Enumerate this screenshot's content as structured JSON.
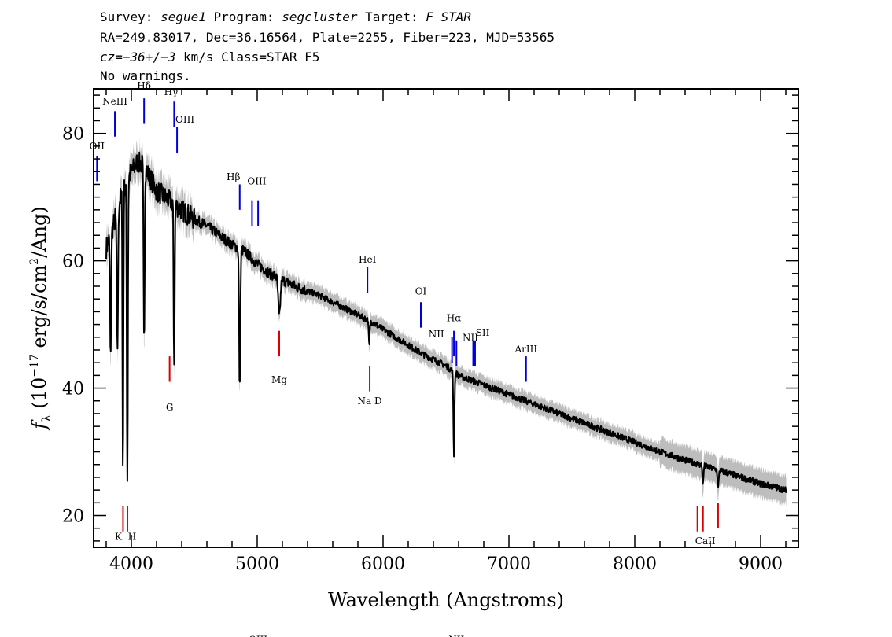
{
  "header": {
    "line1": {
      "survey_label": "Survey: ",
      "survey": "segue1",
      "program_label": " Program: ",
      "program": "segcluster",
      "target_label": " Target: ",
      "target": "F_STAR"
    },
    "line2": "RA=249.83017, Dec=36.16564, Plate=2255, Fiber=223, MJD=53565",
    "line3": {
      "cz": "cz=",
      "velocity": "−36+/−3",
      "rest": " km/s Class=STAR F5"
    },
    "line4": "No warnings."
  },
  "chart_data": {
    "type": "line",
    "xlabel": "Wavelength (Angstroms)",
    "ylabel": "f_λ (10^-17 erg/s/cm^2/Ang)",
    "ylabel_parts": {
      "f": "f",
      "sub": "λ",
      "pre": " (10",
      "exp1": "−17",
      "mid": " erg/s/cm",
      "exp2": "2",
      "post": "/Ang)"
    },
    "xlim": [
      3700,
      9300
    ],
    "ylim": [
      15,
      87
    ],
    "xticks": [
      4000,
      5000,
      6000,
      7000,
      8000,
      9000
    ],
    "xtick_labels": [
      "4000",
      "5000",
      "6000",
      "7000",
      "8000",
      "9000"
    ],
    "yticks": [
      20,
      40,
      60,
      80
    ],
    "ytick_labels": [
      "20",
      "40",
      "60",
      "80"
    ],
    "grid": false,
    "colors": {
      "flux": "#000000",
      "error_band": "#bdbdbd",
      "emission": "#0000dd",
      "absorption": "#dd0000"
    },
    "flux_anchors": [
      [
        3800,
        62
      ],
      [
        3850,
        65
      ],
      [
        3900,
        69
      ],
      [
        3950,
        72
      ],
      [
        4000,
        74
      ],
      [
        4050,
        75.5
      ],
      [
        4100,
        75
      ],
      [
        4150,
        73
      ],
      [
        4200,
        71
      ],
      [
        4300,
        69.5
      ],
      [
        4400,
        68
      ],
      [
        4500,
        66.5
      ],
      [
        4600,
        65.5
      ],
      [
        4700,
        64
      ],
      [
        4800,
        62.5
      ],
      [
        4900,
        61.5
      ],
      [
        5000,
        59.5
      ],
      [
        5100,
        58
      ],
      [
        5200,
        57
      ],
      [
        5300,
        56
      ],
      [
        5500,
        54.5
      ],
      [
        5700,
        52.5
      ],
      [
        5900,
        50.5
      ],
      [
        6100,
        48
      ],
      [
        6300,
        45.5
      ],
      [
        6500,
        43.5
      ],
      [
        6600,
        42
      ],
      [
        6800,
        40.5
      ],
      [
        7000,
        39
      ],
      [
        7200,
        37.5
      ],
      [
        7400,
        36
      ],
      [
        7600,
        34.5
      ],
      [
        7800,
        33
      ],
      [
        8000,
        31.5
      ],
      [
        8200,
        30
      ],
      [
        8400,
        28.7
      ],
      [
        8600,
        27.5
      ],
      [
        8800,
        26.3
      ],
      [
        9000,
        25
      ],
      [
        9200,
        24
      ]
    ],
    "absorption_features": [
      {
        "x": 3835,
        "depth": 20,
        "width": 6
      },
      {
        "x": 3889,
        "depth": 22,
        "width": 7
      },
      {
        "x": 3933,
        "depth": 45,
        "width": 5
      },
      {
        "x": 3968,
        "depth": 47,
        "width": 6
      },
      {
        "x": 4101,
        "depth": 28,
        "width": 6
      },
      {
        "x": 4340,
        "depth": 25,
        "width": 6
      },
      {
        "x": 4861,
        "depth": 22,
        "width": 7
      },
      {
        "x": 5175,
        "depth": 6,
        "width": 12
      },
      {
        "x": 5890,
        "depth": 4,
        "width": 6
      },
      {
        "x": 6563,
        "depth": 13,
        "width": 6
      },
      {
        "x": 8542,
        "depth": 3,
        "width": 6
      },
      {
        "x": 8662,
        "depth": 3,
        "width": 6
      }
    ],
    "emission_lines": [
      {
        "label": "OII",
        "x": 3727,
        "y1": 72.5,
        "y2": 76.5,
        "label_y": 77.5,
        "label_dx": 0
      },
      {
        "label": "NeIII",
        "x": 3869,
        "y1": 79.5,
        "y2": 83.5,
        "label_y": 84.5,
        "label_dx": 0
      },
      {
        "label": "Hδ",
        "x": 4101,
        "y1": 81.5,
        "y2": 85.5,
        "label_y": 87.0,
        "label_dx": 0
      },
      {
        "label": "Hγ",
        "x": 4340,
        "y1": 81.0,
        "y2": 85.0,
        "label_y": 86.0,
        "label_dx": -4
      },
      {
        "label": "OIII",
        "x": 4363,
        "y1": 77.0,
        "y2": 81.0,
        "label_y": 81.7,
        "label_dx": 10
      },
      {
        "label": "Hβ",
        "x": 4861,
        "y1": 68.0,
        "y2": 72.0,
        "label_y": 72.7,
        "label_dx": -8
      },
      {
        "label": "OIII",
        "x": 4959,
        "y1": 65.5,
        "y2": 69.5,
        "label_y": 72.0,
        "label_dx": 6
      },
      {
        "label": "OIII",
        "x": 5007,
        "y1": 65.5,
        "y2": 69.5,
        "label_y": 0,
        "label_dx": 0
      },
      {
        "label": "HeI",
        "x": 5876,
        "y1": 55.0,
        "y2": 59.0,
        "label_y": 59.7,
        "label_dx": 0
      },
      {
        "label": "OI",
        "x": 6300,
        "y1": 49.5,
        "y2": 53.5,
        "label_y": 54.7,
        "label_dx": 0
      },
      {
        "label": "NII",
        "x": 6548,
        "y1": 44.0,
        "y2": 48.0,
        "label_y": 48.0,
        "label_dx": -20
      },
      {
        "label": "Hα",
        "x": 6563,
        "y1": 45.0,
        "y2": 49.0,
        "label_y": 50.5,
        "label_dx": 0
      },
      {
        "label": "NII",
        "x": 6583,
        "y1": 43.5,
        "y2": 47.5,
        "label_y": 0,
        "label_dx": 0
      },
      {
        "label": "SII",
        "x": 6716,
        "y1": 43.5,
        "y2": 47.5,
        "label_y": 48.2,
        "label_dx": 12
      },
      {
        "label": "NII",
        "x": 6731,
        "y1": 43.5,
        "y2": 47.5,
        "label_y": 47.4,
        "label_dx": -6
      },
      {
        "label": "ArIII",
        "x": 7136,
        "y1": 41.0,
        "y2": 45.0,
        "label_y": 45.6,
        "label_dx": 0
      }
    ],
    "absorption_lines": [
      {
        "label": "K",
        "x": 3934,
        "y1": 17.5,
        "y2": 21.5,
        "label_y": 16.2,
        "label_dx": -6
      },
      {
        "label": "H",
        "x": 3969,
        "y1": 17.5,
        "y2": 21.5,
        "label_y": 16.2,
        "label_dx": 6
      },
      {
        "label": "G",
        "x": 4304,
        "y1": 41.0,
        "y2": 45.0,
        "label_y": 36.5,
        "label_dx": 0
      },
      {
        "label": "Mg",
        "x": 5175,
        "y1": 45.0,
        "y2": 49.0,
        "label_y": 40.8,
        "label_dx": 0
      },
      {
        "label": "Na  D",
        "x": 5894,
        "y1": 39.5,
        "y2": 43.5,
        "label_y": 37.5,
        "label_dx": 0
      },
      {
        "label": "CaII",
        "x": 8498,
        "y1": 17.5,
        "y2": 21.5,
        "label_y": 15.5,
        "label_dx": 10
      },
      {
        "label": "",
        "x": 8542,
        "y1": 17.5,
        "y2": 21.5,
        "label_y": 0,
        "label_dx": 0
      },
      {
        "label": "",
        "x": 8662,
        "y1": 18.0,
        "y2": 22.0,
        "label_y": 0,
        "label_dx": 0
      }
    ]
  }
}
